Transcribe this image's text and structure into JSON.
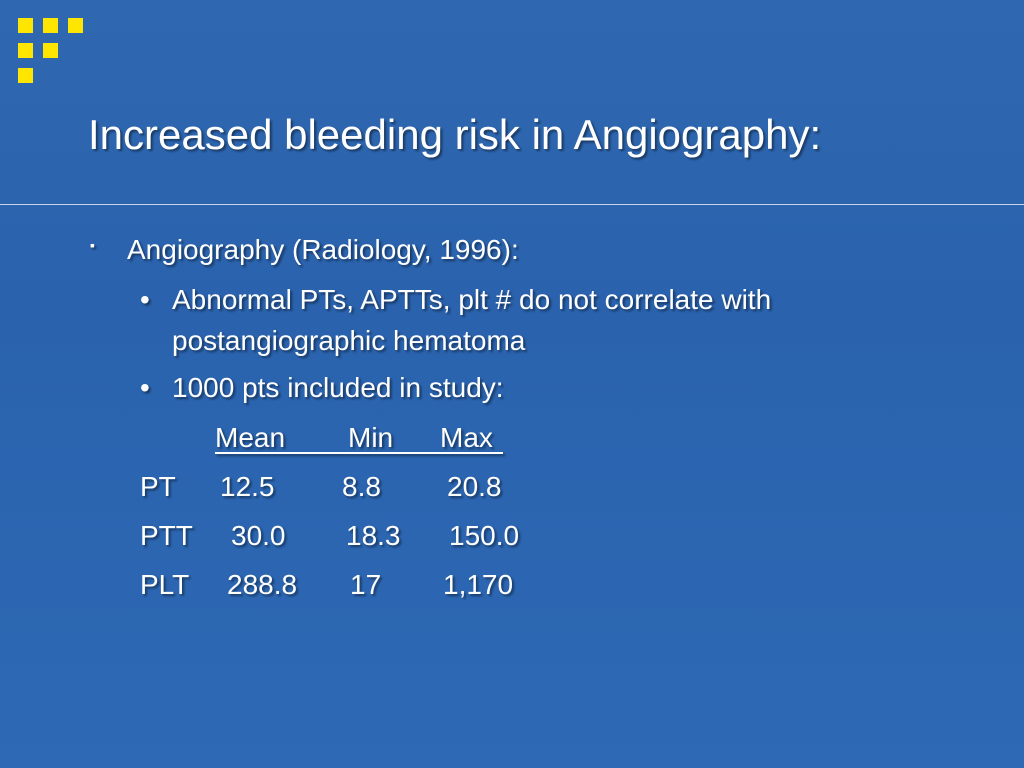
{
  "title": "Increased bleeding risk in Angiography:",
  "bullets": [
    {
      "text": "Angiography (Radiology, 1996):",
      "children": [
        "Abnormal PTs, APTTs, plt # do not correlate with postangiographic hematoma",
        "1000 pts included in study:"
      ]
    }
  ],
  "table": {
    "header": [
      "Mean",
      "Min",
      "Max"
    ],
    "rows": [
      [
        "PT",
        "12.5",
        "8.8",
        "20.8"
      ],
      [
        "PTT",
        "30.0",
        "18.3",
        "150.0"
      ],
      [
        "PLT",
        "288.8",
        "17",
        "1,170"
      ]
    ]
  }
}
